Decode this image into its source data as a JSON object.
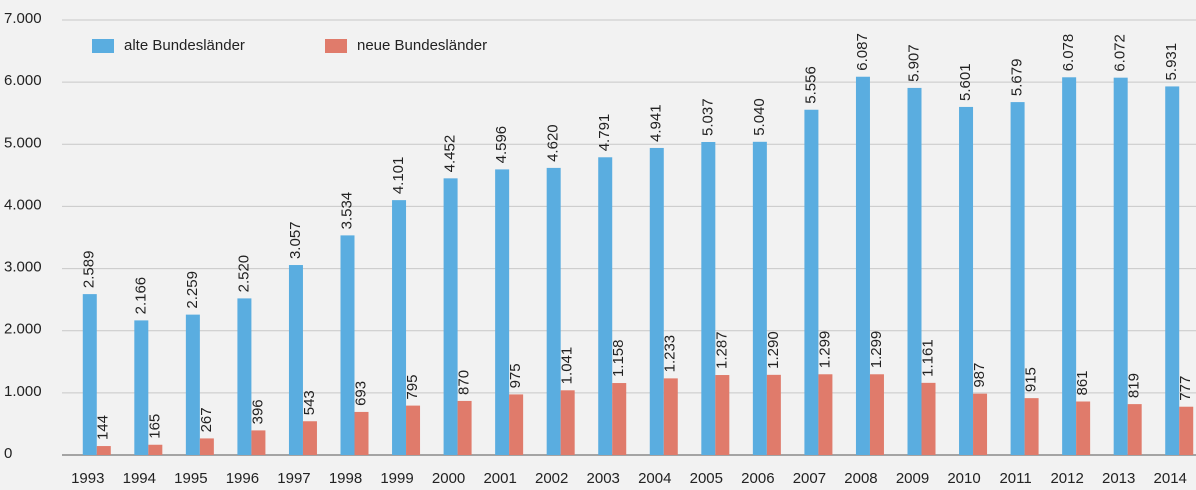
{
  "chart_data": {
    "type": "bar",
    "categories": [
      "1993",
      "1994",
      "1995",
      "1996",
      "1997",
      "1998",
      "1999",
      "2000",
      "2001",
      "2002",
      "2003",
      "2004",
      "2005",
      "2006",
      "2007",
      "2008",
      "2009",
      "2010",
      "2011",
      "2012",
      "2013",
      "2014"
    ],
    "series": [
      {
        "name": "alte Bundesländer",
        "color": "#5aade0",
        "label_color": "#1f8fd3",
        "values": [
          2589,
          2166,
          2259,
          2520,
          3057,
          3534,
          4101,
          4452,
          4596,
          4620,
          4791,
          4941,
          5037,
          5040,
          5556,
          6087,
          5907,
          5601,
          5679,
          6078,
          6072,
          5931
        ],
        "value_labels": [
          "2.589",
          "2.166",
          "2.259",
          "2.520",
          "3.057",
          "3.534",
          "4.101",
          "4.452",
          "4.596",
          "4.620",
          "4.791",
          "4.941",
          "5.037",
          "5.040",
          "5.556",
          "6.087",
          "5.907",
          "5.601",
          "5.679",
          "6.078",
          "6.072",
          "5.931"
        ]
      },
      {
        "name": "neue Bundesländer",
        "color": "#e07b6b",
        "label_color": "#c8324a",
        "values": [
          144,
          165,
          267,
          396,
          543,
          693,
          795,
          870,
          975,
          1041,
          1158,
          1233,
          1287,
          1290,
          1299,
          1299,
          1161,
          987,
          915,
          861,
          819,
          777
        ],
        "value_labels": [
          "144",
          "165",
          "267",
          "396",
          "543",
          "693",
          "795",
          "870",
          "975",
          "1.041",
          "1.158",
          "1.233",
          "1.287",
          "1.290",
          "1.299",
          "1.299",
          "1.161",
          "987",
          "915",
          "861",
          "819",
          "777"
        ]
      }
    ],
    "ylim": [
      0,
      7000
    ],
    "yticks": [
      0,
      {
        "value": 1000,
        "label": "1.000"
      },
      {
        "value": 2000,
        "label": "2.000"
      },
      {
        "value": 3000,
        "label": "3.000"
      },
      {
        "value": 4000,
        "label": "4.000"
      },
      {
        "value": 5000,
        "label": "5.000"
      },
      {
        "value": 6000,
        "label": "6.000"
      },
      {
        "value": 7000,
        "label": "7.000"
      }
    ],
    "grid": true,
    "legend": "upper left"
  }
}
